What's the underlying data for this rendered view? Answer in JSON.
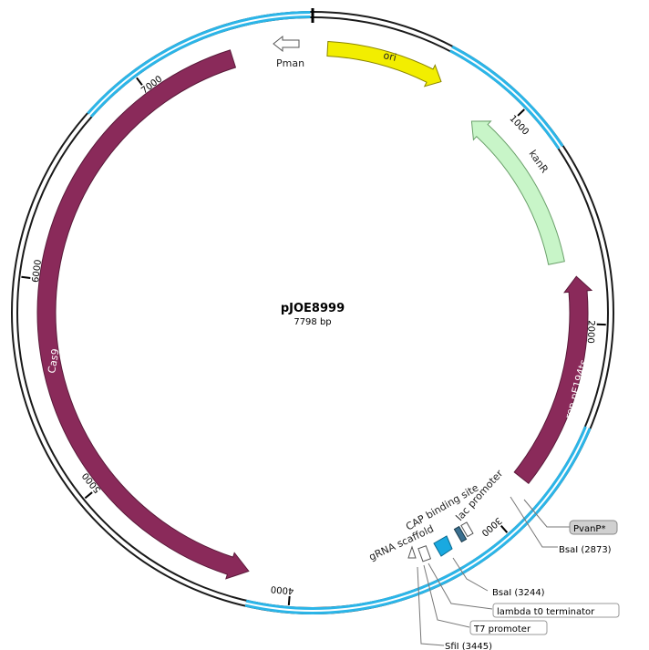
{
  "plasmid": {
    "name": "pJOE8999",
    "size_label": "7798 bp",
    "length_bp": 7798
  },
  "colors": {
    "backbone": "#1a1a1a",
    "backbone_highlight": "#2bb5e8",
    "cas9": "#8a2a5a",
    "rep": "#8a2a5a",
    "ori": "#f2ee00",
    "kanR": "#c8f5c8",
    "cap_site": "#19a9e0",
    "lac_promoter": "#3a6f8f"
  },
  "ticks": [
    {
      "bp": 0,
      "label": ""
    },
    {
      "bp": 1000,
      "label": "1000"
    },
    {
      "bp": 2000,
      "label": "2000"
    },
    {
      "bp": 3000,
      "label": "3000"
    },
    {
      "bp": 4000,
      "label": "4000"
    },
    {
      "bp": 5000,
      "label": "5000"
    },
    {
      "bp": 6000,
      "label": "6000"
    },
    {
      "bp": 7000,
      "label": "7000"
    }
  ],
  "features": [
    {
      "name": "ori",
      "label": "ori",
      "type": "yellow"
    },
    {
      "name": "kanR",
      "label": "kanR",
      "type": "green"
    },
    {
      "name": "rep pE194ts",
      "label": "rep pE194ts",
      "type": "purple"
    },
    {
      "name": "Cas9",
      "label": "Cas9",
      "type": "purple"
    },
    {
      "name": "Pman",
      "label": "Pman",
      "type": "outline"
    },
    {
      "name": "CAP binding site",
      "label": "CAP binding site",
      "type": "blue"
    },
    {
      "name": "lac promoter",
      "label": "lac promoter",
      "type": "dark"
    },
    {
      "name": "gRNA scaffold",
      "label": "gRNA scaffold",
      "type": "outline"
    }
  ],
  "sites": [
    {
      "label": "PvanP*",
      "boxed": true
    },
    {
      "label": "BsaI  (2873)",
      "boxed": false
    },
    {
      "label": "BsaI  (3244)",
      "boxed": false
    },
    {
      "label": "lambda t0 terminator",
      "boxed": true
    },
    {
      "label": "T7 promoter",
      "boxed": true
    },
    {
      "label": "SfiI  (3445)",
      "boxed": false
    }
  ]
}
